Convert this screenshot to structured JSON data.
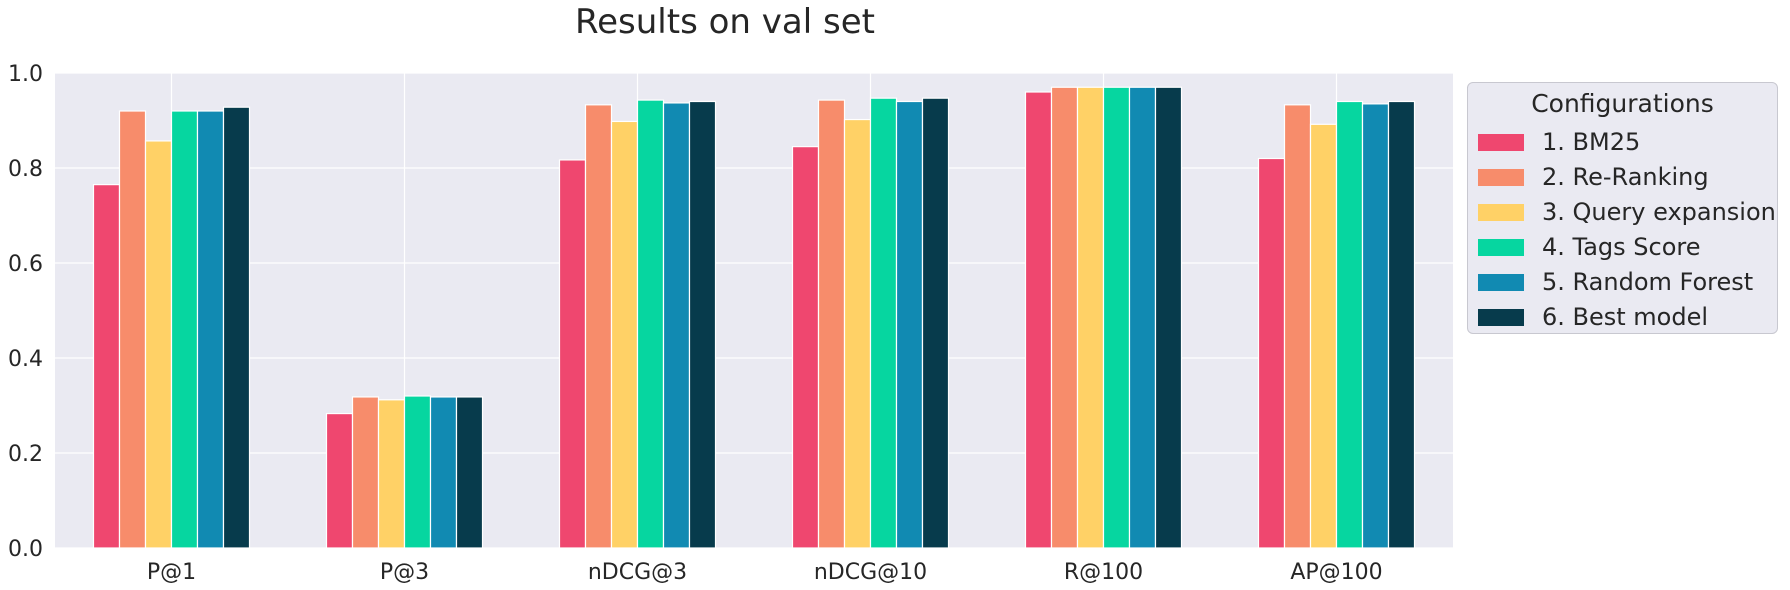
{
  "chart_data": {
    "type": "bar",
    "title": "Results on val set",
    "xlabel": "",
    "ylabel": "",
    "ylim": [
      0,
      1.0
    ],
    "yticks": [
      "0.0",
      "0.2",
      "0.4",
      "0.6",
      "0.8",
      "1.0"
    ],
    "grid": true,
    "legend_title": "Configurations",
    "legend_position": "outside-right",
    "categories": [
      "P@1",
      "P@3",
      "nDCG@3",
      "nDCG@10",
      "R@100",
      "AP@100"
    ],
    "series": [
      {
        "name": "1. BM25",
        "color": "#ef476f",
        "values": [
          0.765,
          0.283,
          0.817,
          0.845,
          0.96,
          0.82
        ]
      },
      {
        "name": "2. Re-Ranking",
        "color": "#f78c6b",
        "values": [
          0.92,
          0.318,
          0.933,
          0.943,
          0.97,
          0.933
        ]
      },
      {
        "name": "3. Query expansion",
        "color": "#ffd166",
        "values": [
          0.857,
          0.312,
          0.898,
          0.902,
          0.97,
          0.892
        ]
      },
      {
        "name": "4. Tags Score",
        "color": "#06d6a0",
        "values": [
          0.92,
          0.32,
          0.943,
          0.947,
          0.97,
          0.94
        ]
      },
      {
        "name": "5. Random Forest",
        "color": "#118ab2",
        "values": [
          0.92,
          0.318,
          0.937,
          0.94,
          0.97,
          0.935
        ]
      },
      {
        "name": "6. Best model",
        "color": "#073b4c",
        "values": [
          0.928,
          0.318,
          0.94,
          0.947,
          0.97,
          0.94
        ]
      }
    ]
  }
}
